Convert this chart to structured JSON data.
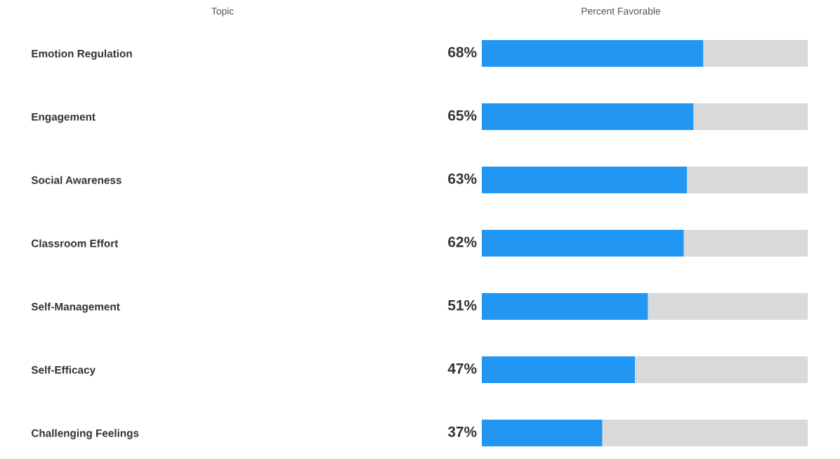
{
  "chart_data": {
    "type": "bar",
    "orientation": "horizontal",
    "stacked": true,
    "xlabel": "Percent Favorable",
    "ylabel": "Topic",
    "categories": [
      "Emotion Regulation",
      "Engagement",
      "Social Awareness",
      "Classroom Effort",
      "Self-Management",
      "Self-Efficacy",
      "Challenging Feelings"
    ],
    "series": [
      {
        "color": "#2196f3",
        "values": [
          68,
          65,
          63,
          62,
          51,
          47,
          37
        ],
        "value_labels": [
          "68%",
          "65%",
          "63%",
          "62%",
          "51%",
          "47%",
          "37%"
        ]
      },
      {
        "color": "#d9d9d9",
        "values": [
          32,
          35,
          37,
          38,
          49,
          53,
          63
        ]
      }
    ],
    "xlim": [
      0,
      100
    ],
    "tick_labels": "y",
    "grid": false,
    "legend": false
  }
}
